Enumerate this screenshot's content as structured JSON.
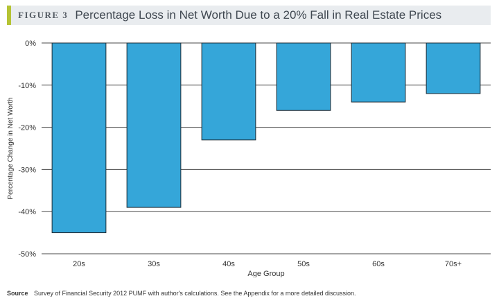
{
  "figure": {
    "label": "FIGURE 3",
    "title": "Percentage Loss in Net Worth Due to a 20% Fall in Real Estate Prices"
  },
  "source": {
    "label": "Source",
    "text": "Survey of Financial Security 2012 PUMF with author's calculations. See the Appendix for a more detailed discussion."
  },
  "colors": {
    "bar": "#35a6d9",
    "bar_outline": "#1e2a33",
    "grid": "#4a4a4a",
    "accent": "#b5c334",
    "title_background": "#e9ecef"
  },
  "chart_data": {
    "type": "bar",
    "title": "Percentage Loss in Net Worth Due to a 20% Fall in Real Estate Prices",
    "xlabel": "Age Group",
    "ylabel": "Percentage Change in Net Worth",
    "categories": [
      "20s",
      "30s",
      "40s",
      "50s",
      "60s",
      "70s+"
    ],
    "values": [
      -45,
      -39,
      -23,
      -16,
      -14,
      -12
    ],
    "unit": "%",
    "ylim": [
      -50,
      0
    ],
    "yticks": [
      0,
      -10,
      -20,
      -30,
      -40,
      -50
    ],
    "ytick_labels": [
      "0%",
      "-10%",
      "-20%",
      "-30%",
      "-40%",
      "-50%"
    ],
    "grid": true,
    "legend": "none"
  }
}
